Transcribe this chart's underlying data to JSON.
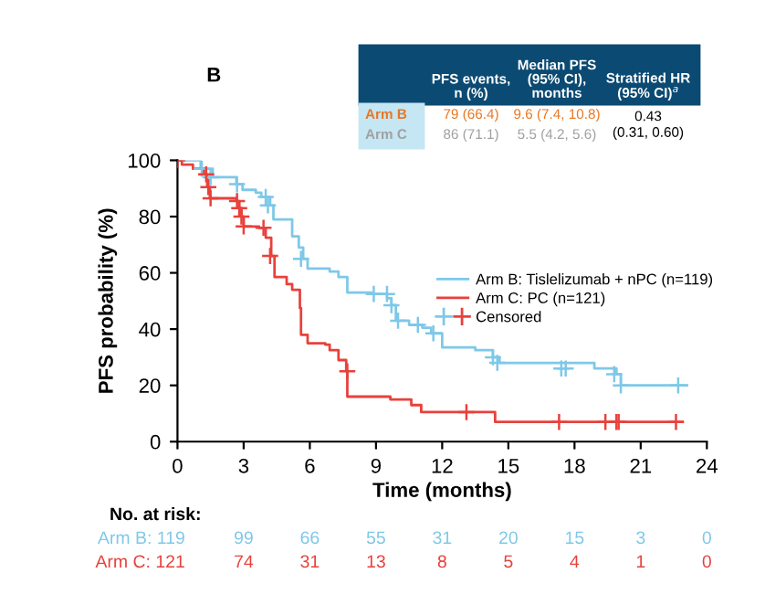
{
  "chart_data": {
    "type": "step",
    "title": "B",
    "xlabel": "Time (months)",
    "ylabel": "PFS probability (%)",
    "xlim": [
      0,
      24
    ],
    "xticks": [
      0,
      3,
      6,
      9,
      12,
      15,
      18,
      21,
      24
    ],
    "ylim": [
      0,
      100
    ],
    "yticks": [
      0,
      20,
      40,
      60,
      80,
      100
    ],
    "grid": false,
    "legend": "right",
    "series": [
      {
        "name": "Arm B: Tislelizumab + nPC (n=119)",
        "color": "#7ec8e8",
        "x": [
          0,
          1.05,
          1.6,
          2.67,
          2.95,
          3.55,
          3.8,
          4.2,
          4.35,
          5.2,
          5.5,
          5.7,
          5.9,
          6.9,
          7.3,
          7.7,
          8.8,
          9.5,
          9.7,
          9.9,
          10.5,
          11.1,
          11.5,
          12.0,
          13.5,
          14.3,
          14.6,
          18.9,
          19.9,
          20.1,
          23.1
        ],
        "values": [
          100,
          97,
          94,
          91.5,
          89.5,
          88.5,
          87,
          84,
          79,
          73,
          69,
          65,
          61.5,
          60.5,
          58.5,
          53,
          52.5,
          51,
          48.5,
          43,
          41.5,
          40.5,
          38.5,
          33.5,
          32.5,
          30,
          28,
          26,
          24,
          20,
          20
        ]
      },
      {
        "name": "Arm C: PC (n=121)",
        "color": "#e8413c",
        "x": [
          0,
          0.2,
          0.7,
          1.2,
          1.35,
          1.47,
          2.67,
          2.8,
          2.9,
          3.0,
          3.7,
          4.0,
          4.25,
          4.4,
          4.95,
          5.2,
          5.55,
          5.6,
          5.9,
          6.7,
          6.9,
          7.3,
          7.65,
          7.7,
          9.65,
          10.6,
          11.05,
          14.4,
          22.9
        ],
        "values": [
          100,
          98.5,
          97,
          95,
          90.5,
          86.5,
          85.5,
          83,
          80,
          76.5,
          76,
          72.5,
          66,
          58.5,
          56,
          54,
          47.5,
          38,
          35,
          34.5,
          32.5,
          29,
          25,
          16,
          15,
          13,
          10.5,
          7,
          7
        ]
      },
      {
        "name": "Censored",
        "type": "scatter",
        "marker": "cross",
        "color": "#555555",
        "x": [
          1.1,
          1.5,
          2.7,
          4.0,
          4.1,
          5.6,
          8.9,
          9.5,
          9.7,
          10.0,
          10.9,
          11.6,
          14.3,
          14.5,
          17.4,
          17.6,
          19.8,
          20.1,
          22.7,
          0.0,
          1.3,
          1.4,
          1.5,
          2.7,
          2.8,
          2.9,
          3.0,
          3.9,
          4.2,
          7.7,
          13.1,
          17.3,
          19.4,
          19.9,
          20.0,
          22.6
        ],
        "values": [
          97,
          94,
          91.5,
          87,
          84,
          65,
          52.5,
          52.5,
          48.5,
          43,
          41.5,
          38.5,
          30,
          28,
          26,
          26,
          24,
          20,
          20,
          100,
          95,
          90.5,
          86.5,
          85.5,
          83,
          80,
          76.5,
          76,
          66,
          25,
          10.5,
          7,
          7,
          7,
          7,
          7
        ],
        "colors": [
          "#7ec8e8",
          "#7ec8e8",
          "#7ec8e8",
          "#7ec8e8",
          "#7ec8e8",
          "#7ec8e8",
          "#7ec8e8",
          "#7ec8e8",
          "#7ec8e8",
          "#7ec8e8",
          "#7ec8e8",
          "#7ec8e8",
          "#7ec8e8",
          "#7ec8e8",
          "#7ec8e8",
          "#7ec8e8",
          "#7ec8e8",
          "#7ec8e8",
          "#7ec8e8",
          "#e8413c",
          "#e8413c",
          "#e8413c",
          "#e8413c",
          "#e8413c",
          "#e8413c",
          "#e8413c",
          "#e8413c",
          "#e8413c",
          "#e8413c",
          "#e8413c",
          "#e8413c",
          "#e8413c",
          "#e8413c",
          "#e8413c",
          "#e8413c",
          "#e8413c"
        ]
      }
    ],
    "annotations": [
      "PFS events,\nn (%)",
      "Median PFS\n(95% CI),\nmonths",
      "Stratified HR\n(95% CI)$^{a}$",
      "Arm B",
      "79 (66.4)",
      "9.6 (7.4, 10.8)",
      "0.43\n(0.31, 0.60)",
      "Arm C",
      "86 (71.1)",
      "5.5 (4.2, 5.6)",
      "No. at risk:",
      "Arm B: 119",
      "99",
      "66",
      "55",
      "31",
      "20",
      "15",
      "3",
      "0",
      "Arm C: 121",
      "74",
      "31",
      "13",
      "8",
      "5",
      "4",
      "1",
      "0"
    ]
  }
}
